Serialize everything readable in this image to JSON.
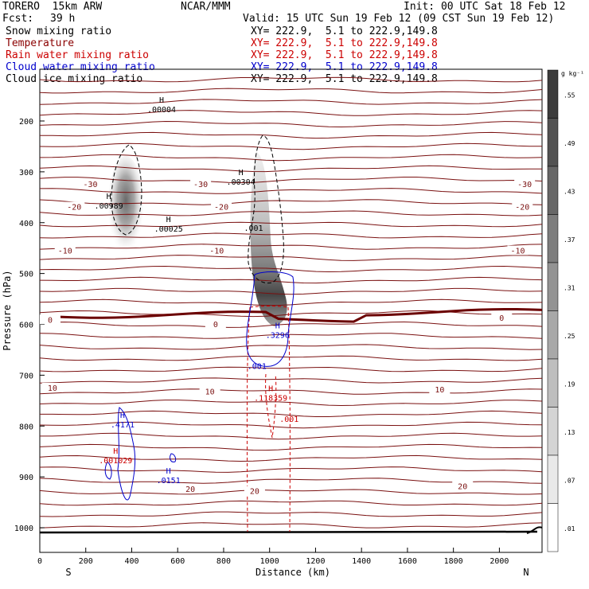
{
  "header": {
    "model": "TORERO  15km ARW",
    "org": "NCAR/MMM",
    "init": "Init: 00 UTC Sat 18 Feb 12",
    "fcst_label": "Fcst:",
    "fcst_value": "39 h",
    "valid": "Valid: 15 UTC Sun 19 Feb 12 (09 CST Sun 19 Feb 12)"
  },
  "fields": [
    {
      "name": "Snow mixing ratio",
      "xy": "XY= 222.9,  5.1 to 222.9,149.8",
      "color": "#000000"
    },
    {
      "name": "Temperature",
      "xy": "XY= 222.9,  5.1 to 222.9,149.8",
      "color": "#8b0000"
    },
    {
      "name": "Rain water mixing ratio",
      "xy": "XY= 222.9,  5.1 to 222.9,149.8",
      "color": "#cc0000"
    },
    {
      "name": "Cloud water mixing ratio",
      "xy": "XY= 222.9,  5.1 to 222.9,149.8",
      "color": "#0000cc"
    },
    {
      "name": "Cloud ice mixing ratio",
      "xy": "XY= 222.9,  5.1 to 222.9,149.8",
      "color": "#000000"
    }
  ],
  "axes": {
    "xlabel": "Distance (km)",
    "ylabel": "Pressure (hPa)",
    "south": "S",
    "north": "N"
  },
  "colorbar": {
    "unit": "g kg⁻¹",
    "labels": [
      ".55",
      ".49",
      ".43",
      ".37",
      ".31",
      ".25",
      ".19",
      ".13",
      ".07",
      ".01"
    ]
  },
  "chart_data": {
    "type": "contour",
    "xlim": [
      0,
      2180
    ],
    "ylim": [
      1050,
      100
    ],
    "xticks": [
      0,
      200,
      400,
      600,
      800,
      1000,
      1200,
      1400,
      1600,
      1800,
      2000
    ],
    "yticks": [
      200,
      300,
      400,
      500,
      600,
      700,
      800,
      900,
      1000
    ],
    "temperature_labels": [
      {
        "text": "-30",
        "x": 220,
        "p": 325
      },
      {
        "text": "-30",
        "x": 700,
        "p": 325
      },
      {
        "text": "-30",
        "x": 2110,
        "p": 325
      },
      {
        "text": "-20",
        "x": 150,
        "p": 370
      },
      {
        "text": "-20",
        "x": 790,
        "p": 370
      },
      {
        "text": "-20",
        "x": 2100,
        "p": 370
      },
      {
        "text": "-10",
        "x": 110,
        "p": 456
      },
      {
        "text": "-10",
        "x": 770,
        "p": 456
      },
      {
        "text": "-10",
        "x": 2080,
        "p": 456
      },
      {
        "text": "0",
        "x": 45,
        "p": 592
      },
      {
        "text": "0",
        "x": 765,
        "p": 601
      },
      {
        "text": "0",
        "x": 2010,
        "p": 588
      },
      {
        "text": "10",
        "x": 55,
        "p": 726
      },
      {
        "text": "10",
        "x": 740,
        "p": 733
      },
      {
        "text": "10",
        "x": 1740,
        "p": 729
      },
      {
        "text": "20",
        "x": 655,
        "p": 925
      },
      {
        "text": "20",
        "x": 935,
        "p": 929
      },
      {
        "text": "20",
        "x": 1840,
        "p": 919
      }
    ],
    "extrema": [
      {
        "mark": "H",
        "value": ".00004",
        "x": 530,
        "p": 183,
        "color": "#000000"
      },
      {
        "mark": "H",
        "value": ".00989",
        "x": 300,
        "p": 372,
        "color": "#000000"
      },
      {
        "mark": "H",
        "value": ".00025",
        "x": 560,
        "p": 418,
        "color": "#000000"
      },
      {
        "mark": "H",
        "value": ".00304",
        "x": 875,
        "p": 325,
        "color": "#000000"
      },
      {
        "mark": "",
        "value": ".001",
        "x": 930,
        "p": 416,
        "color": "#000000"
      },
      {
        "mark": "H",
        "value": ".3296",
        "x": 1035,
        "p": 627,
        "color": "#0000cc"
      },
      {
        "mark": "",
        "value": ".001",
        "x": 945,
        "p": 688,
        "color": "#0000cc"
      },
      {
        "mark": "H",
        "value": ".118359",
        "x": 1005,
        "p": 750,
        "color": "#cc0000"
      },
      {
        "mark": "",
        "value": ".001",
        "x": 1085,
        "p": 792,
        "color": "#cc0000"
      },
      {
        "mark": "H",
        "value": ".4171",
        "x": 360,
        "p": 803,
        "color": "#0000cc"
      },
      {
        "mark": "H",
        "value": ".001029",
        "x": 330,
        "p": 873,
        "color": "#cc0000"
      },
      {
        "mark": "H",
        "value": ".0151",
        "x": 560,
        "p": 912,
        "color": "#0000cc"
      }
    ],
    "grid": false,
    "legend": "top-left"
  }
}
